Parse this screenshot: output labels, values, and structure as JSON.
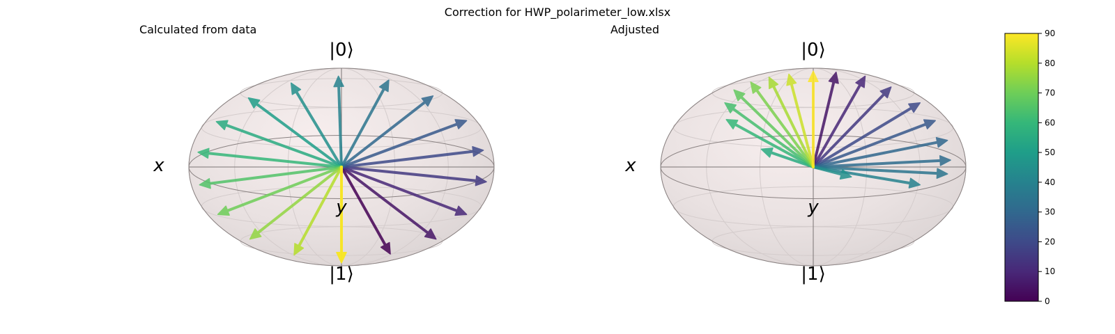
{
  "figure": {
    "title": "Correction for HWP_polarimeter_low.xlsx"
  },
  "chart_data": [
    {
      "type": "bloch_sphere",
      "title": "Calculated from data",
      "axis_labels": {
        "x": "x",
        "y": "y",
        "z_top": "|0⟩",
        "z_bottom": "|1⟩"
      },
      "vectors": [
        {
          "value": 0,
          "x": 0.32,
          "y": 0,
          "z": -0.88
        },
        {
          "value": 5,
          "x": 0.62,
          "y": 0,
          "z": -0.73
        },
        {
          "value": 10,
          "x": 0.82,
          "y": 0,
          "z": -0.48
        },
        {
          "value": 15,
          "x": 0.95,
          "y": 0,
          "z": -0.15
        },
        {
          "value": 20,
          "x": 0.93,
          "y": 0,
          "z": 0.17
        },
        {
          "value": 25,
          "x": 0.82,
          "y": 0,
          "z": 0.47
        },
        {
          "value": 30,
          "x": 0.6,
          "y": 0,
          "z": 0.72
        },
        {
          "value": 35,
          "x": 0.31,
          "y": 0,
          "z": 0.88
        },
        {
          "value": 40,
          "x": -0.02,
          "y": 0,
          "z": 0.92
        },
        {
          "value": 45,
          "x": -0.33,
          "y": 0,
          "z": 0.85
        },
        {
          "value": 50,
          "x": -0.61,
          "y": 0,
          "z": 0.7
        },
        {
          "value": 55,
          "x": -0.82,
          "y": 0,
          "z": 0.46
        },
        {
          "value": 60,
          "x": -0.94,
          "y": 0,
          "z": 0.15
        },
        {
          "value": 65,
          "x": -0.93,
          "y": 0,
          "z": -0.18
        },
        {
          "value": 70,
          "x": -0.81,
          "y": 0,
          "z": -0.48
        },
        {
          "value": 75,
          "x": -0.6,
          "y": 0,
          "z": -0.73
        },
        {
          "value": 80,
          "x": -0.31,
          "y": 0,
          "z": -0.89
        },
        {
          "value": 85,
          "x": 0.0,
          "y": 0,
          "z": -0.97
        },
        {
          "value": 90,
          "x": 0.0,
          "y": 0,
          "z": -0.97
        }
      ]
    },
    {
      "type": "bloch_sphere",
      "title": "Adjusted",
      "axis_labels": {
        "x": "x",
        "y": "y",
        "z_top": "|0⟩",
        "z_bottom": "|1⟩"
      },
      "vectors": [
        {
          "value": 5,
          "x": 0.15,
          "y": 0,
          "z": 0.96
        },
        {
          "value": 10,
          "x": 0.34,
          "y": 0,
          "z": 0.92
        },
        {
          "value": 15,
          "x": 0.51,
          "y": 0,
          "z": 0.81
        },
        {
          "value": 20,
          "x": 0.7,
          "y": 0,
          "z": 0.65
        },
        {
          "value": 25,
          "x": 0.8,
          "y": 0,
          "z": 0.47
        },
        {
          "value": 30,
          "x": 0.88,
          "y": 0,
          "z": 0.27
        },
        {
          "value": 32,
          "x": 0.9,
          "y": 0,
          "z": 0.07
        },
        {
          "value": 35,
          "x": 0.88,
          "y": 0,
          "z": -0.07
        },
        {
          "value": 40,
          "x": 0.7,
          "y": 0,
          "z": -0.18
        },
        {
          "value": 45,
          "x": 0.25,
          "y": 0,
          "z": -0.1
        },
        {
          "value": 55,
          "x": -0.34,
          "y": 0,
          "z": 0.18
        },
        {
          "value": 60,
          "x": -0.57,
          "y": 0,
          "z": 0.48
        },
        {
          "value": 63,
          "x": -0.58,
          "y": 0,
          "z": 0.65
        },
        {
          "value": 68,
          "x": -0.52,
          "y": 0,
          "z": 0.78
        },
        {
          "value": 72,
          "x": -0.41,
          "y": 0,
          "z": 0.86
        },
        {
          "value": 78,
          "x": -0.29,
          "y": 0,
          "z": 0.91
        },
        {
          "value": 83,
          "x": -0.16,
          "y": 0,
          "z": 0.94
        },
        {
          "value": 90,
          "x": 0.0,
          "y": 0,
          "z": 0.97
        }
      ]
    }
  ],
  "colorbar": {
    "min": 0,
    "max": 90,
    "ticks": [
      "0",
      "10",
      "20",
      "30",
      "40",
      "50",
      "60",
      "70",
      "80",
      "90"
    ],
    "colormap": [
      "#440154",
      "#482878",
      "#3e4a89",
      "#31688e",
      "#26828e",
      "#1f9e89",
      "#35b779",
      "#6ece58",
      "#b5de2b",
      "#fde725"
    ]
  }
}
